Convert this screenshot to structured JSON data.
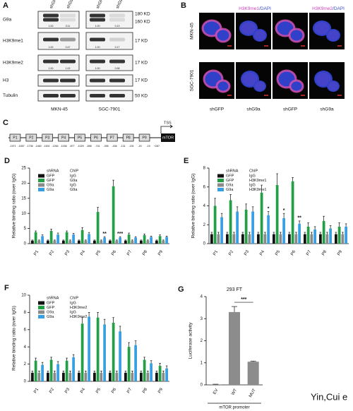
{
  "panel_a": {
    "label": "A",
    "columns": [
      "shGFP",
      "shG9a",
      "shGFP",
      "shG9a"
    ],
    "rows": [
      {
        "name": "G9a",
        "quant": [
          "1.00",
          "0.11",
          "1.00",
          "0.13"
        ]
      },
      {
        "name": "H3K9me1",
        "quant": [
          "1.00",
          "0.47",
          "1.00",
          "0.17"
        ]
      },
      {
        "name": "H3K9me2",
        "quant": [
          "1.00",
          "1.02",
          "1.00",
          "0.98"
        ]
      },
      {
        "name": "H3"
      },
      {
        "name": "Tubulin"
      }
    ],
    "sizes": [
      "180 KD",
      "160 KD",
      "17 KD",
      "17 KD",
      "17 KD",
      "50 KD"
    ],
    "cell_lines": [
      "MKN-45",
      "SGC-7901"
    ]
  },
  "panel_b": {
    "label": "B",
    "headers": [
      {
        "stain": "H3K9me1",
        "counterstain": "/DAPI"
      },
      {
        "stain": "H3K9me2",
        "counterstain": "/DAPI"
      }
    ],
    "rows": [
      "MKN-45",
      "SGC-7901"
    ],
    "columns": [
      "shGFP",
      "shG9a",
      "shGFP",
      "shG9a"
    ]
  },
  "panel_c": {
    "label": "C",
    "regions": [
      "P1",
      "P2",
      "P3",
      "P4",
      "P5",
      "P6",
      "P7",
      "P8",
      "P9"
    ],
    "positions": [
      "-1971",
      "-1557",
      "-1736",
      "-1460",
      "-1501",
      "-1264",
      "-1036",
      "-877",
      "-1029",
      "-898",
      "-741",
      "-395",
      "-436",
      "-131",
      "-191",
      "-20",
      "-19",
      "+287"
    ],
    "tss": "TSS",
    "gene": "mTOR"
  },
  "chart_data": [
    {
      "type": "bar",
      "label": "D",
      "y_label": "Relative binding ratio (over IgG)",
      "legend_headers": [
        "shRNA",
        "ChIP"
      ],
      "categories": [
        "P1",
        "P2",
        "P3",
        "P4",
        "P5",
        "P6",
        "P7",
        "P8",
        "P9"
      ],
      "series": [
        {
          "name": "GFP",
          "chip": "IgG",
          "color": "#111111",
          "values": [
            1,
            1,
            1,
            1,
            1,
            1,
            1,
            1,
            1
          ],
          "errors": [
            0.2,
            0.2,
            0.2,
            0.2,
            0.2,
            0.2,
            0.2,
            0.2,
            0.2
          ]
        },
        {
          "name": "GFP",
          "chip": "G9a",
          "color": "#23a046",
          "values": [
            3.8,
            4.2,
            3.8,
            4.5,
            10.5,
            19,
            3,
            2.8,
            2.5
          ],
          "errors": [
            0.4,
            0.6,
            0.4,
            0.8,
            1.5,
            2,
            0.5,
            0.4,
            0.4
          ]
        },
        {
          "name": "G9a",
          "chip": "IgG",
          "color": "#8a8a8a",
          "values": [
            1,
            1,
            1,
            1,
            1,
            1,
            1,
            1,
            1
          ],
          "errors": [
            0.2,
            0.2,
            0.2,
            0.2,
            0.2,
            0.2,
            0.2,
            0.2,
            0.2
          ]
        },
        {
          "name": "G9a",
          "chip": "G9a",
          "color": "#3a9fe0",
          "values": [
            2.5,
            3,
            3,
            3.2,
            2,
            2,
            2,
            2.2,
            2.2
          ],
          "errors": [
            0.4,
            0.5,
            0.4,
            0.5,
            0.3,
            0.3,
            0.3,
            0.3,
            0.3
          ]
        }
      ],
      "significance": [
        null,
        null,
        null,
        null,
        "**",
        "***",
        null,
        null,
        null
      ],
      "ylim": [
        0,
        25
      ],
      "yticks": [
        0,
        5,
        10,
        15,
        20,
        25
      ]
    },
    {
      "type": "bar",
      "label": "E",
      "y_label": "Relative binding ratio (over IgG)",
      "legend_headers": [
        "shRNA",
        "ChIP"
      ],
      "categories": [
        "P1",
        "P2",
        "P3",
        "P4",
        "P5",
        "P6",
        "P7",
        "P8",
        "P9"
      ],
      "series": [
        {
          "name": "GFP",
          "chip": "IgG",
          "color": "#111111",
          "values": [
            1,
            1,
            1,
            1,
            1,
            1,
            1,
            1,
            1
          ],
          "errors": [
            0.2,
            0.2,
            0.2,
            0.2,
            0.2,
            0.2,
            0.2,
            0.2,
            0.2
          ]
        },
        {
          "name": "GFP",
          "chip": "H3K9me1",
          "color": "#23a046",
          "values": [
            4,
            4.6,
            3.6,
            5.4,
            6.2,
            6.6,
            1.8,
            2.4,
            1.8
          ],
          "errors": [
            0.8,
            0.6,
            0.6,
            0.8,
            1.2,
            0.4,
            0.4,
            0.5,
            0.4
          ]
        },
        {
          "name": "G9a",
          "chip": "IgG",
          "color": "#8a8a8a",
          "values": [
            1,
            1,
            1,
            1,
            1,
            1,
            1,
            1,
            1
          ],
          "errors": [
            0.2,
            0.2,
            0.2,
            0.2,
            0.2,
            0.2,
            0.2,
            0.2,
            0.2
          ]
        },
        {
          "name": "G9a",
          "chip": "H3K9me1",
          "color": "#3a9fe0",
          "values": [
            2.8,
            3.4,
            3.4,
            3,
            2.7,
            2.1,
            1.5,
            1.6,
            1.8
          ],
          "errors": [
            0.4,
            0.5,
            0.5,
            0.4,
            0.5,
            0.3,
            0.3,
            0.3,
            0.3
          ]
        }
      ],
      "significance": [
        null,
        null,
        null,
        "*",
        "*",
        "**",
        null,
        null,
        null
      ],
      "ylim": [
        0,
        8
      ],
      "yticks": [
        0,
        2,
        4,
        6,
        8
      ]
    },
    {
      "type": "bar",
      "label": "F",
      "y_label": "Relative binding ratio (over IgG)",
      "legend_headers": [
        "shRNA",
        "ChIP"
      ],
      "categories": [
        "P1",
        "P2",
        "P3",
        "P4",
        "P5",
        "P6",
        "P7",
        "P8",
        "P9"
      ],
      "series": [
        {
          "name": "GFP",
          "chip": "IgG",
          "color": "#111111",
          "values": [
            1,
            1,
            1,
            1,
            1,
            1,
            1,
            1,
            1
          ],
          "errors": [
            0.2,
            0.2,
            0.2,
            0.2,
            0.2,
            0.2,
            0.2,
            0.2,
            0.2
          ]
        },
        {
          "name": "GFP",
          "chip": "H3K9me2",
          "color": "#23a046",
          "values": [
            2.4,
            2.5,
            2.4,
            6.7,
            7.4,
            6.8,
            4,
            2.5,
            1.8
          ],
          "errors": [
            0.3,
            0.3,
            0.3,
            0.7,
            0.6,
            0.6,
            0.5,
            0.3,
            0.3
          ]
        },
        {
          "name": "G9a",
          "chip": "IgG",
          "color": "#8a8a8a",
          "values": [
            1,
            1,
            1,
            1,
            1,
            1,
            1,
            1,
            1
          ],
          "errors": [
            0.2,
            0.2,
            0.2,
            0.2,
            0.2,
            0.2,
            0.2,
            0.2,
            0.2
          ]
        },
        {
          "name": "G9a",
          "chip": "H3K9me2",
          "color": "#3a9fe0",
          "values": [
            1.9,
            2,
            2.8,
            7.5,
            6.6,
            5.8,
            4.2,
            2.1,
            1.5
          ],
          "errors": [
            0.3,
            0.3,
            0.3,
            0.5,
            0.6,
            0.6,
            0.5,
            0.3,
            0.3
          ]
        }
      ],
      "ylim": [
        0,
        10
      ],
      "yticks": [
        0,
        2,
        4,
        6,
        8,
        10
      ]
    },
    {
      "type": "simplebar",
      "label": "G",
      "title": "293 FT",
      "y_label": "Luciferase activity",
      "x_label": "mTOR promoter",
      "categories": [
        "EV",
        "WT",
        "MUT"
      ],
      "values": [
        0.02,
        3.3,
        1.05
      ],
      "errors": [
        0.01,
        0.25,
        0.03
      ],
      "color": "#8c8c8c",
      "bracket": "***",
      "ylim": [
        0,
        4
      ],
      "yticks": [
        0,
        1,
        2,
        3,
        4
      ]
    }
  ],
  "footer": "Yin,Cui e"
}
